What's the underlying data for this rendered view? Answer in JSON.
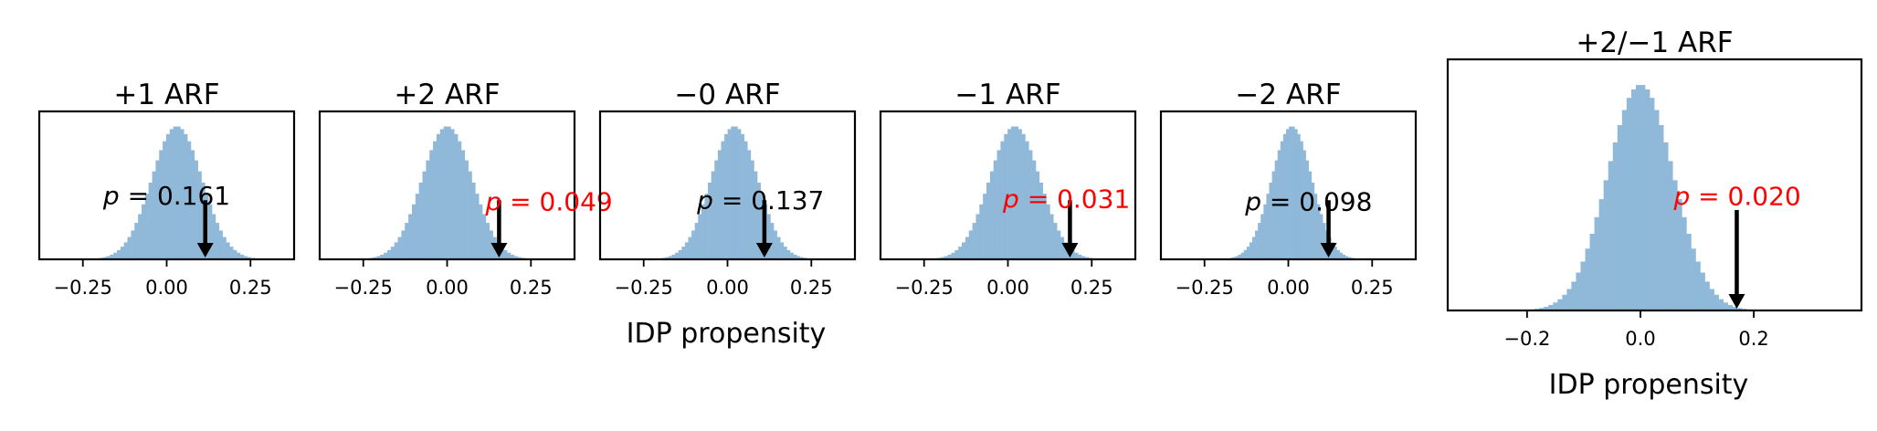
{
  "chart_data": [
    {
      "type": "histogram",
      "title": "+1 ARF",
      "xlim": [
        -0.38,
        0.38
      ],
      "xticks": [
        -0.25,
        0.0,
        0.25
      ],
      "xtick_labels": [
        "−0.25",
        "0.00",
        "0.25"
      ],
      "center": 0.03,
      "spread": 0.075,
      "observed": 0.115,
      "pvalue_prefix": "p",
      "pvalue_text": "= 0.161",
      "pvalue_color": "#000000",
      "bar_color": "#8fb8d9"
    },
    {
      "type": "histogram",
      "title": "+2 ARF",
      "xlim": [
        -0.38,
        0.38
      ],
      "xticks": [
        -0.25,
        0.0,
        0.25
      ],
      "xtick_labels": [
        "−0.25",
        "0.00",
        "0.25"
      ],
      "center": 0.0,
      "spread": 0.075,
      "observed": 0.155,
      "pvalue_prefix": "p",
      "pvalue_text": "= 0.049",
      "pvalue_color": "#ff0000",
      "bar_color": "#8fb8d9"
    },
    {
      "type": "histogram",
      "title": "−0 ARF",
      "xlim": [
        -0.38,
        0.38
      ],
      "xticks": [
        -0.25,
        0.0,
        0.25
      ],
      "xtick_labels": [
        "−0.25",
        "0.00",
        "0.25"
      ],
      "center": 0.02,
      "spread": 0.07,
      "observed": 0.11,
      "pvalue_prefix": "p",
      "pvalue_text": "= 0.137",
      "pvalue_color": "#000000",
      "bar_color": "#8fb8d9"
    },
    {
      "type": "histogram",
      "title": "−1 ARF",
      "xlim": [
        -0.38,
        0.38
      ],
      "xticks": [
        -0.25,
        0.0,
        0.25
      ],
      "xtick_labels": [
        "−0.25",
        "0.00",
        "0.25"
      ],
      "center": 0.02,
      "spread": 0.075,
      "observed": 0.185,
      "pvalue_prefix": "p",
      "pvalue_text": "= 0.031",
      "pvalue_color": "#ff0000",
      "bar_color": "#8fb8d9"
    },
    {
      "type": "histogram",
      "title": "−2 ARF",
      "xlim": [
        -0.38,
        0.38
      ],
      "xticks": [
        -0.25,
        0.0,
        0.25
      ],
      "xtick_labels": [
        "−0.25",
        "0.00",
        "0.25"
      ],
      "center": 0.01,
      "spread": 0.06,
      "observed": 0.12,
      "pvalue_prefix": "p",
      "pvalue_text": "= 0.098",
      "pvalue_color": "#000000",
      "bar_color": "#8fb8d9"
    },
    {
      "type": "histogram",
      "title": "+2/−1 ARF",
      "xlim": [
        -0.34,
        0.39
      ],
      "xticks": [
        -0.2,
        0.0,
        0.2
      ],
      "xtick_labels": [
        "−0.2",
        "0.0",
        "0.2"
      ],
      "center": 0.0,
      "spread": 0.058,
      "observed": 0.17,
      "pvalue_prefix": "p",
      "pvalue_text": "= 0.020",
      "pvalue_color": "#ff0000",
      "bar_color": "#8fb8d9"
    }
  ],
  "shared_xlabel": "IDP propensity",
  "large_xlabel": "IDP propensity"
}
